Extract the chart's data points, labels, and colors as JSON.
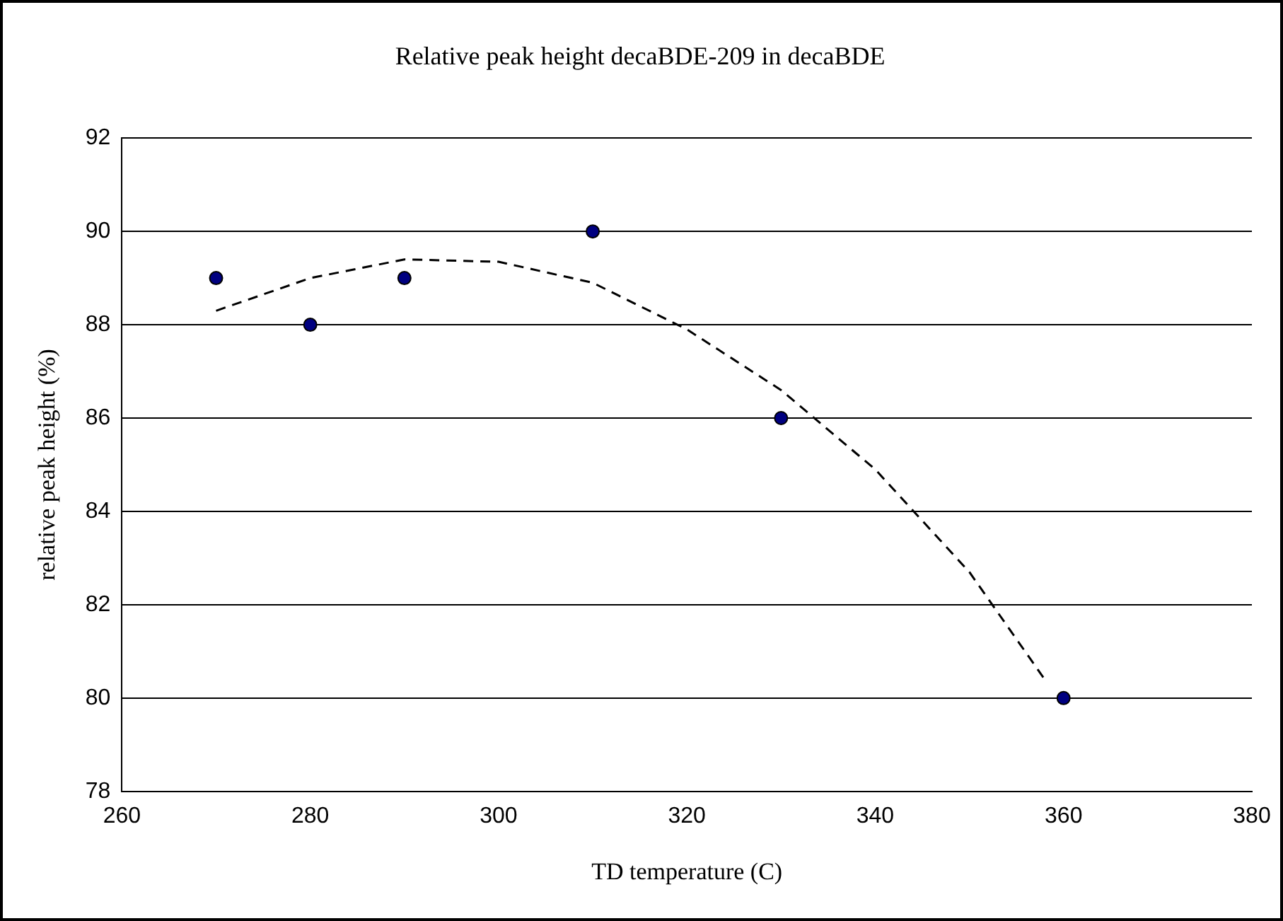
{
  "chart_data": {
    "type": "scatter",
    "title": "Relative peak height decaBDE-209 in decaBDE",
    "xlabel": "TD temperature (C)",
    "ylabel": "relative peak height (%)",
    "xlim": [
      260,
      380
    ],
    "xticks": [
      260,
      280,
      300,
      320,
      340,
      360,
      380
    ],
    "ylim": [
      78,
      92
    ],
    "yticks": [
      78,
      80,
      82,
      84,
      86,
      88,
      90,
      92
    ],
    "grid": "y",
    "legend": false,
    "series": [
      {
        "color": "#000080",
        "marker": "circle",
        "x": [
          270,
          280,
          290,
          310,
          330,
          360
        ],
        "values": [
          89,
          88,
          89,
          90,
          86,
          80
        ]
      },
      {
        "type": "line",
        "color": "#000000",
        "marker": "none",
        "line_style": "dashed",
        "x": [
          270,
          280,
          290,
          300,
          310,
          320,
          330,
          340,
          350,
          358
        ],
        "values": [
          88.3,
          89.0,
          89.4,
          89.35,
          88.9,
          87.9,
          86.6,
          84.9,
          82.7,
          80.4
        ]
      }
    ]
  }
}
